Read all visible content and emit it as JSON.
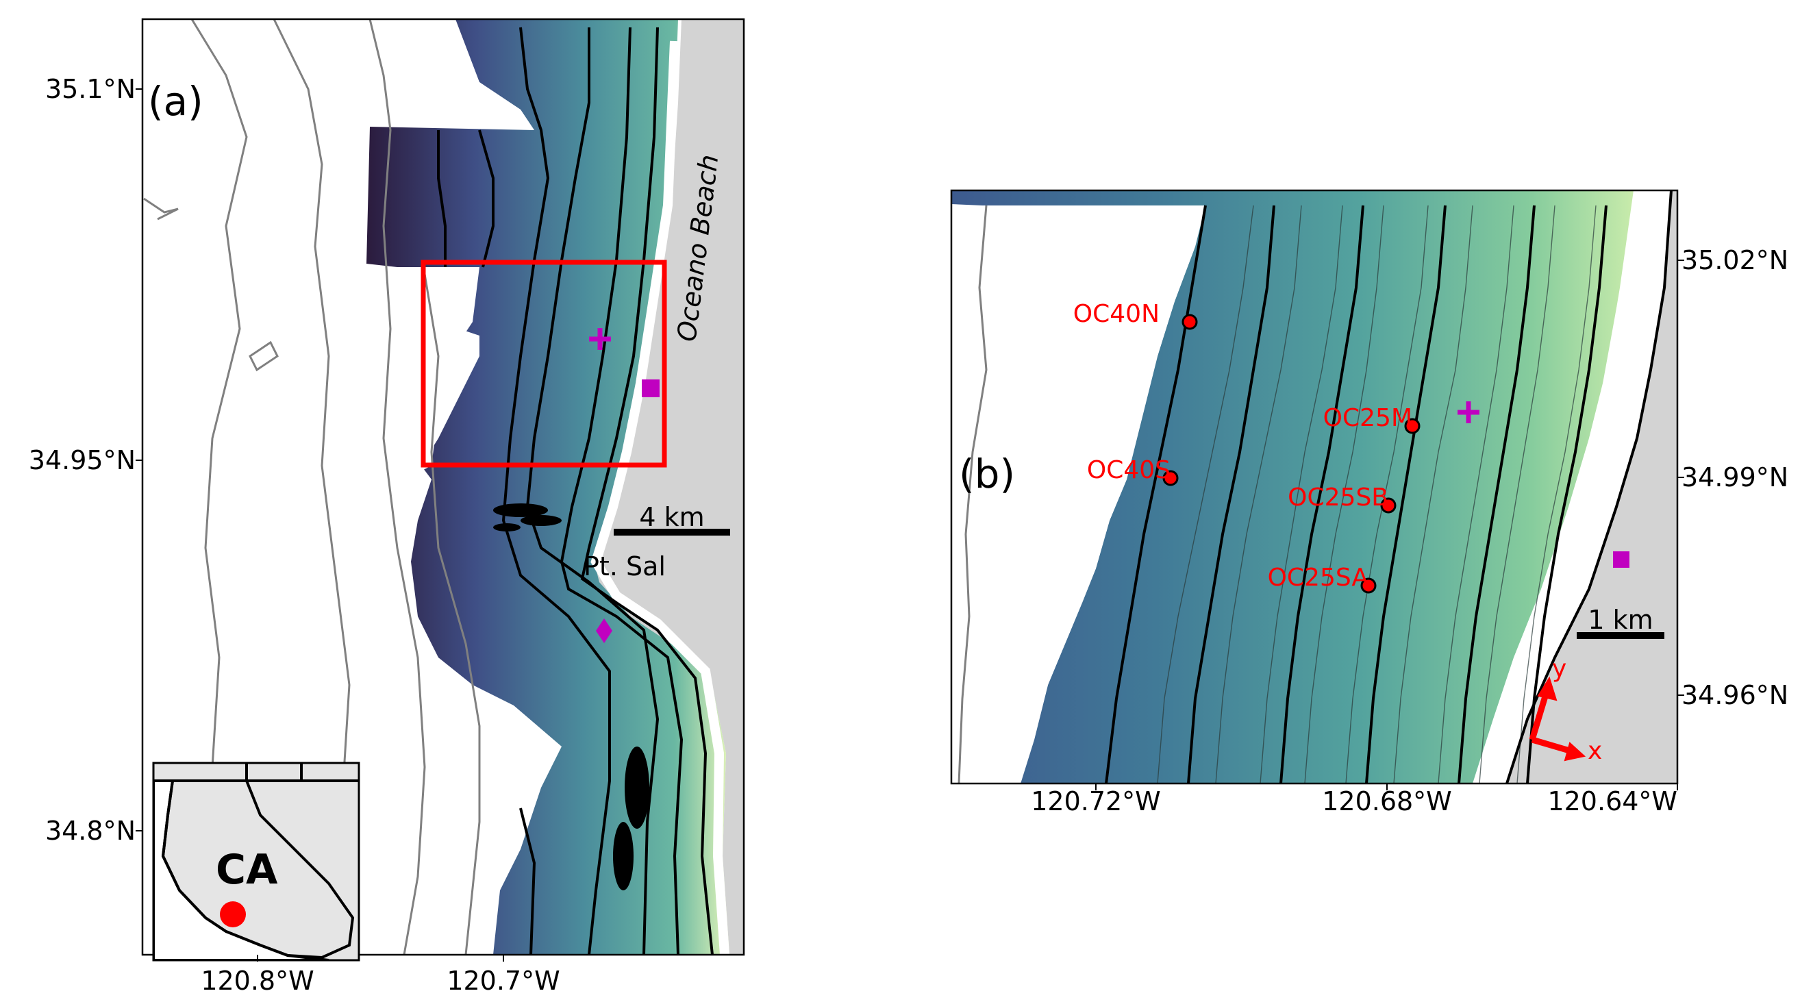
{
  "panel_a": {
    "label": "(a)",
    "lat_ticks": [
      "35.1°N",
      "34.95°N",
      "34.8°N"
    ],
    "lon_ticks": [
      "120.8°W",
      "120.7°W"
    ],
    "place_labels": {
      "beach": "Oceano Beach",
      "point": "Pt. Sal"
    },
    "scale_bar": "4 km",
    "inset": {
      "state": "CA"
    }
  },
  "panel_b": {
    "label": "(b)",
    "lat_ticks": [
      "35.02°N",
      "34.99°N",
      "34.96°N"
    ],
    "lon_ticks": [
      "120.72°W",
      "120.68°W",
      "120.64°W"
    ],
    "scale_bar": "1 km",
    "axes": {
      "x": "x",
      "y": "y"
    },
    "sites": [
      {
        "name": "OC40N"
      },
      {
        "name": "OC25M"
      },
      {
        "name": "OC40S"
      },
      {
        "name": "OC25SB"
      },
      {
        "name": "OC25SA"
      }
    ]
  },
  "colors": {
    "land": "#d3d3d3",
    "deep": "#2d1e3e",
    "mid": "#4a8f9e",
    "shallow": "#d9f0b0",
    "markers": "#c000c0",
    "highlight": "#ff0000"
  }
}
